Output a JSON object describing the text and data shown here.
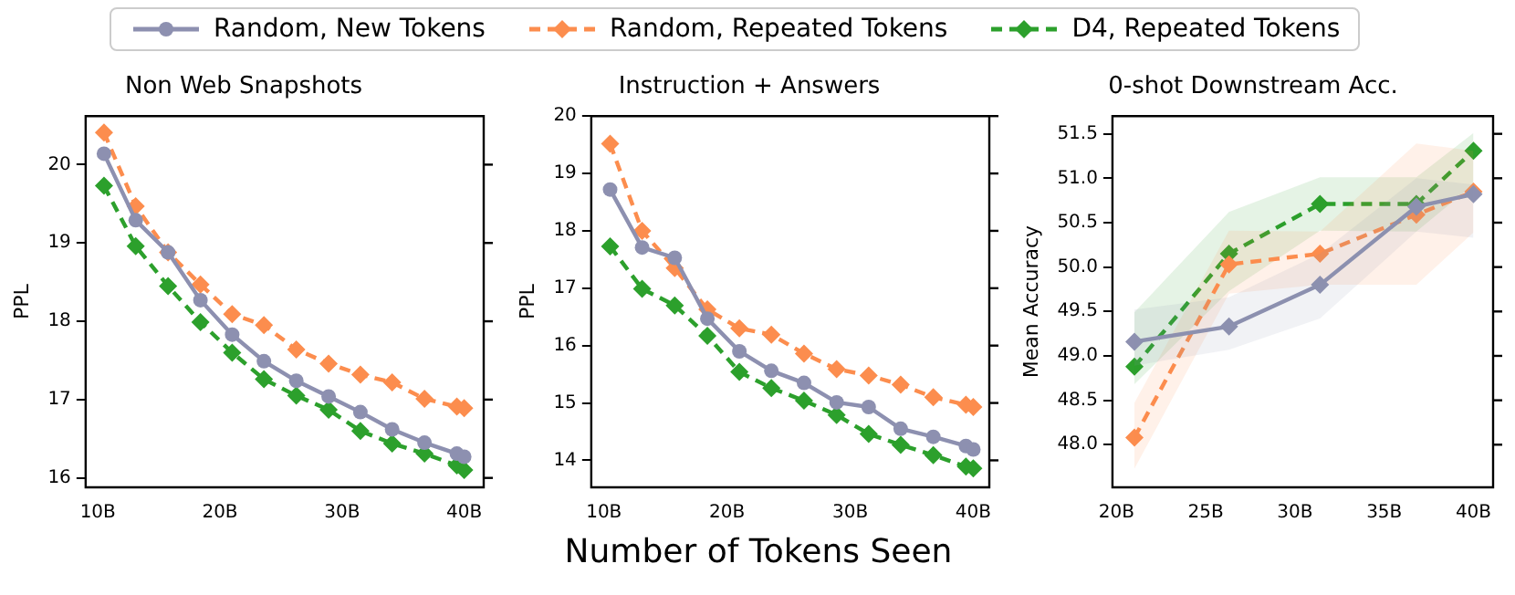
{
  "chart_data": [
    {
      "type": "line",
      "title": "Non Web Snapshots",
      "ylabel": "PPL",
      "legend": "top",
      "grid": false,
      "x": [
        10.5,
        13.1,
        15.75,
        18.4,
        21,
        23.6,
        26.25,
        28.9,
        31.5,
        34.1,
        36.75,
        39.4,
        40
      ],
      "xlim": [
        9,
        41.6
      ],
      "xticks": [
        {
          "value": 10,
          "label": "10B"
        },
        {
          "value": 20,
          "label": "20B"
        },
        {
          "value": 30,
          "label": "30B"
        },
        {
          "value": 40,
          "label": "40B"
        }
      ],
      "ylim": [
        15.88,
        20.62
      ],
      "yticks": [
        16,
        17,
        18,
        19,
        20
      ],
      "series": [
        {
          "name": "Random, New Tokens",
          "color": "#8d90b0",
          "marker": "circle",
          "line_style": "solid",
          "values": [
            20.14,
            19.29,
            18.88,
            18.27,
            17.83,
            17.49,
            17.24,
            17.04,
            16.84,
            16.62,
            16.45,
            16.31,
            16.27
          ]
        },
        {
          "name": "Random, Repeated Tokens",
          "color": "#fc8d4e",
          "marker": "diamond",
          "line_style": "dashed",
          "values": [
            20.41,
            19.47,
            18.88,
            18.47,
            18.09,
            17.95,
            17.64,
            17.46,
            17.32,
            17.22,
            17.01,
            16.91,
            16.89
          ]
        },
        {
          "name": "D4, Repeated Tokens",
          "color": "#2ca02c",
          "marker": "diamond",
          "line_style": "dashed",
          "values": [
            19.73,
            18.96,
            18.45,
            17.99,
            17.6,
            17.26,
            17.05,
            16.87,
            16.6,
            16.44,
            16.31,
            16.16,
            16.1
          ]
        }
      ]
    },
    {
      "type": "line",
      "title": "Instruction + Answers",
      "ylabel": "PPL",
      "xlabel": "Number of Tokens Seen",
      "grid": false,
      "x": [
        10.5,
        13.1,
        15.75,
        18.4,
        21,
        23.6,
        26.25,
        28.9,
        31.5,
        34.1,
        36.75,
        39.4,
        40
      ],
      "xlim": [
        8.97,
        41.3
      ],
      "xticks": [
        {
          "value": 10,
          "label": "10B"
        },
        {
          "value": 20,
          "label": "20B"
        },
        {
          "value": 30,
          "label": "30B"
        },
        {
          "value": 40,
          "label": "40B"
        }
      ],
      "ylim": [
        13.53,
        20
      ],
      "yticks": [
        14,
        15,
        16,
        17,
        18,
        19,
        20
      ],
      "series": [
        {
          "color": "#8d90b0",
          "marker": "circle",
          "line_style": "solid",
          "values": [
            18.72,
            17.71,
            17.53,
            16.47,
            15.9,
            15.56,
            15.35,
            15.01,
            14.93,
            14.55,
            14.41,
            14.25,
            14.19
          ]
        },
        {
          "color": "#fc8d4e",
          "marker": "diamond",
          "line_style": "dashed",
          "values": [
            19.52,
            18.0,
            17.35,
            16.63,
            16.3,
            16.19,
            15.86,
            15.59,
            15.48,
            15.32,
            15.1,
            14.97,
            14.93
          ]
        },
        {
          "color": "#2ca02c",
          "marker": "diamond",
          "line_style": "dashed",
          "values": [
            17.73,
            16.99,
            16.7,
            16.17,
            15.54,
            15.26,
            15.04,
            14.79,
            14.46,
            14.27,
            14.09,
            13.89,
            13.86
          ]
        }
      ]
    },
    {
      "type": "line",
      "title": "0-shot Downstream Acc.",
      "ylabel": "Mean Accuracy",
      "grid": false,
      "x": [
        21.0,
        26.3,
        31.4,
        36.8,
        40.0
      ],
      "xlim": [
        19.77,
        41.1
      ],
      "xticks": [
        {
          "value": 20,
          "label": "20B"
        },
        {
          "value": 25,
          "label": "25B"
        },
        {
          "value": 30,
          "label": "30B"
        },
        {
          "value": 35,
          "label": "35B"
        },
        {
          "value": 40,
          "label": "40B"
        }
      ],
      "ylim": [
        47.52,
        51.7
      ],
      "yticks": [
        {
          "value": 48,
          "label": "48.0"
        },
        48.5,
        {
          "value": 49,
          "label": "49.0"
        },
        49.5,
        {
          "value": 50,
          "label": "50.0"
        },
        50.5,
        {
          "value": 51,
          "label": "51.0"
        },
        51.5
      ],
      "series": [
        {
          "color": "#8d90b0",
          "marker": "diamond",
          "line_style": "solid",
          "values": [
            49.16,
            49.33,
            49.8,
            50.68,
            50.82
          ],
          "lower": [
            48.89,
            49.07,
            49.42,
            50.4,
            50.33
          ],
          "upper": [
            49.52,
            49.66,
            50.15,
            51.0,
            50.93
          ]
        },
        {
          "color": "#fc8d4e",
          "marker": "diamond",
          "line_style": "dashed",
          "values": [
            48.08,
            50.03,
            50.15,
            50.59,
            50.85
          ],
          "lower": [
            47.73,
            49.7,
            49.8,
            49.8,
            50.39
          ],
          "upper": [
            48.47,
            50.41,
            50.4,
            51.39,
            51.31
          ]
        },
        {
          "color": "#2ca02c",
          "marker": "diamond",
          "line_style": "dashed",
          "values": [
            48.88,
            50.15,
            50.71,
            50.71,
            51.31
          ],
          "lower": [
            48.68,
            49.73,
            50.41,
            50.4,
            50.93
          ],
          "upper": [
            49.49,
            50.62,
            51.01,
            51.01,
            51.51
          ]
        }
      ]
    }
  ]
}
